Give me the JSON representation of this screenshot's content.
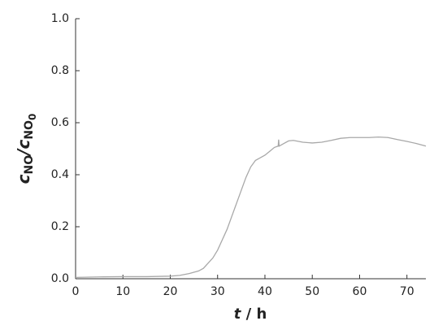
{
  "chart_data": {
    "type": "line",
    "x_label": [
      {
        "text": "t",
        "italic": true
      },
      {
        "text": " / h"
      }
    ],
    "y_label": [
      {
        "text": "c",
        "level": 0
      },
      {
        "text": "NO",
        "level": 1
      },
      {
        "text": "/c",
        "level": 0
      },
      {
        "text": "NO",
        "level": 1
      },
      {
        "text": "0",
        "level": 2
      }
    ],
    "x": [
      0,
      5,
      10,
      15,
      20,
      22,
      24,
      26,
      27,
      28,
      29,
      30,
      31,
      32,
      33,
      34,
      35,
      36,
      37,
      38,
      39,
      40,
      41,
      42,
      42.8,
      42.9,
      43,
      44,
      45,
      46,
      48,
      50,
      52,
      54,
      56,
      58,
      60,
      62,
      64,
      66,
      68,
      70,
      72,
      74
    ],
    "series": [
      {
        "color": "#a8a8a8",
        "values": [
          0.005,
          0.007,
          0.008,
          0.008,
          0.01,
          0.013,
          0.02,
          0.03,
          0.04,
          0.06,
          0.08,
          0.11,
          0.15,
          0.19,
          0.24,
          0.29,
          0.34,
          0.39,
          0.43,
          0.455,
          0.465,
          0.475,
          0.49,
          0.505,
          0.51,
          0.535,
          0.51,
          0.52,
          0.53,
          0.532,
          0.525,
          0.522,
          0.525,
          0.532,
          0.54,
          0.543,
          0.543,
          0.543,
          0.545,
          0.543,
          0.535,
          0.528,
          0.52,
          0.51
        ]
      }
    ],
    "xlim": [
      0,
      74
    ],
    "ylim": [
      0,
      1
    ],
    "xticks": [
      0,
      10,
      20,
      30,
      40,
      50,
      60,
      70
    ],
    "yticks": [
      {
        "value": 0,
        "label": "0.0"
      },
      {
        "value": 0.2,
        "label": "0.2"
      },
      {
        "value": 0.4,
        "label": "0.4"
      },
      {
        "value": 0.6,
        "label": "0.6"
      },
      {
        "value": 0.8,
        "label": "0.8"
      },
      {
        "value": 1,
        "label": "1.0"
      }
    ]
  }
}
